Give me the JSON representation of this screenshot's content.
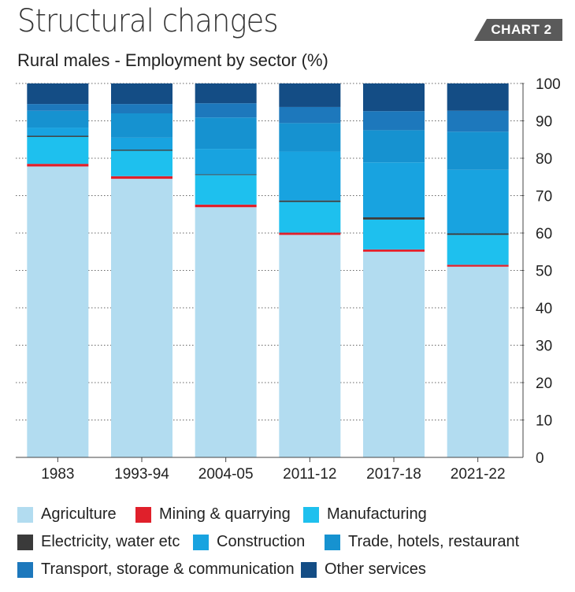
{
  "header": {
    "title": "Structural changes",
    "subtitle": "Rural males - Employment by sector (%)",
    "tag": "CHART 2"
  },
  "chart_data": {
    "type": "bar",
    "stacked": true,
    "categories": [
      "1983",
      "1993-94",
      "2004-05",
      "2011-12",
      "2017-18",
      "2021-22"
    ],
    "series": [
      {
        "name": "Agriculture",
        "color": "#b2dcf0",
        "values": [
          77.8,
          74.5,
          66.9,
          59.5,
          55.0,
          51.0
        ]
      },
      {
        "name": "Mining & quarrying",
        "color": "#e0202b",
        "values": [
          0.7,
          0.7,
          0.7,
          0.6,
          0.6,
          0.5
        ]
      },
      {
        "name": "Manufacturing",
        "color": "#1ec0ee",
        "values": [
          7.2,
          6.8,
          7.9,
          8.2,
          8.0,
          8.0
        ]
      },
      {
        "name": "Electricity, water etc",
        "color": "#3a3a3a",
        "values": [
          0.3,
          0.3,
          0.2,
          0.4,
          0.6,
          0.4
        ]
      },
      {
        "name": "Construction",
        "color": "#18a3e0",
        "values": [
          2.2,
          3.2,
          6.8,
          13.1,
          14.7,
          17.0
        ]
      },
      {
        "name": "Trade, hotels, restaurant",
        "color": "#1692d0",
        "values": [
          4.5,
          6.5,
          8.4,
          7.6,
          8.6,
          10.2
        ]
      },
      {
        "name": "Transport, storage & communication",
        "color": "#1d78bc",
        "values": [
          1.8,
          2.5,
          3.8,
          4.3,
          5.1,
          5.6
        ]
      },
      {
        "name": "Other services",
        "color": "#144d85",
        "values": [
          5.5,
          5.5,
          5.3,
          6.3,
          7.4,
          7.3
        ]
      }
    ],
    "ylim": [
      0,
      100
    ],
    "y_ticks": [
      "0",
      "10",
      "20",
      "30",
      "40",
      "50",
      "60",
      "70",
      "80",
      "90",
      "100"
    ],
    "y_axis_side": "right",
    "grid": "dotted horizontal"
  }
}
